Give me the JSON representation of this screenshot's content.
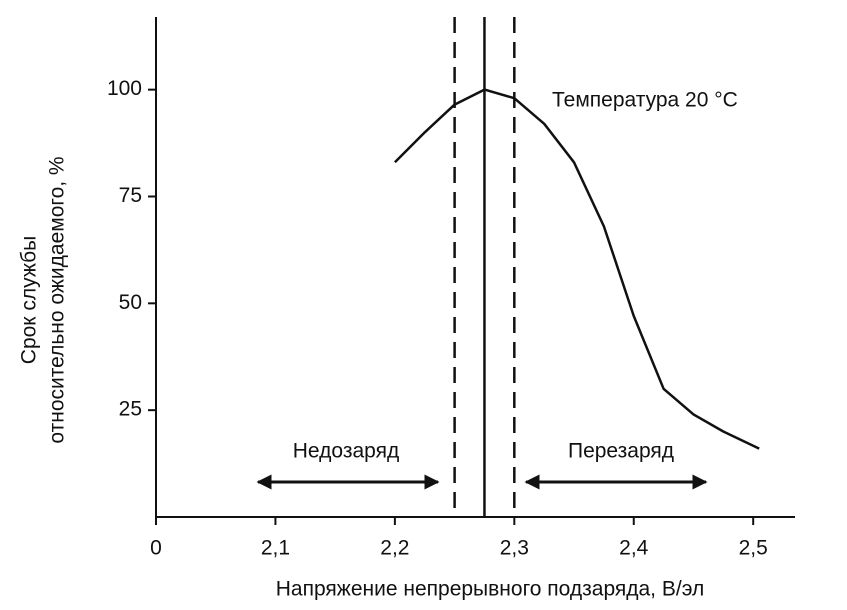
{
  "chart_data": {
    "type": "line",
    "x_label": "Напряжение непрерывного подзаряда, В/эл",
    "y_label": [
      "Срок службы",
      "относительно ожидаемого, %"
    ],
    "x": [
      2.2,
      2.225,
      2.25,
      2.275,
      2.3,
      2.325,
      2.35,
      2.375,
      2.4,
      2.425,
      2.45,
      2.475,
      2.505
    ],
    "values": [
      83,
      90,
      96.5,
      100,
      98,
      92,
      83,
      68,
      47,
      30,
      24,
      20,
      16
    ],
    "color": "#111111",
    "xlim": [
      2.0,
      2.535
    ],
    "ylim": [
      0,
      117
    ],
    "xticks": [
      {
        "value": 2.1,
        "label": "2,1"
      },
      {
        "value": 2.2,
        "label": "2,2"
      },
      {
        "value": 2.3,
        "label": "2,3"
      },
      {
        "value": 2.4,
        "label": "2,4"
      },
      {
        "value": 2.5,
        "label": "2,5"
      }
    ],
    "yticks": [
      0,
      25,
      50,
      75,
      100
    ],
    "reference_lines": [
      {
        "x": 2.25,
        "style": "dashed"
      },
      {
        "x": 2.275,
        "style": "solid"
      },
      {
        "x": 2.3,
        "style": "dashed"
      }
    ],
    "annotations": [
      "Температура 20 °C",
      "Недозаряд",
      "Перезаряд"
    ]
  }
}
